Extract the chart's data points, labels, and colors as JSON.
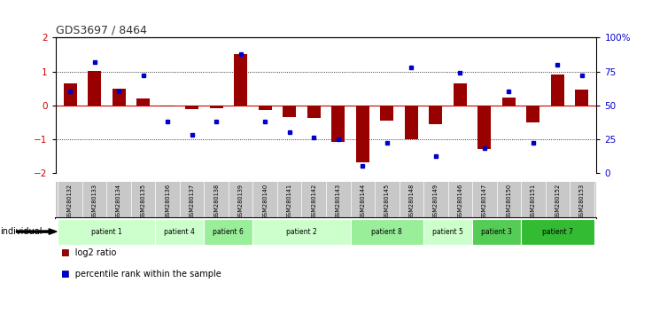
{
  "title": "GDS3697 / 8464",
  "samples": [
    "GSM280132",
    "GSM280133",
    "GSM280134",
    "GSM280135",
    "GSM280136",
    "GSM280137",
    "GSM280138",
    "GSM280139",
    "GSM280140",
    "GSM280141",
    "GSM280142",
    "GSM280143",
    "GSM280144",
    "GSM280145",
    "GSM280148",
    "GSM280149",
    "GSM280146",
    "GSM280147",
    "GSM280150",
    "GSM280151",
    "GSM280152",
    "GSM280153"
  ],
  "log2_ratio": [
    0.65,
    1.02,
    0.48,
    0.2,
    -0.05,
    -0.12,
    -0.08,
    1.52,
    -0.15,
    -0.35,
    -0.38,
    -1.1,
    -1.7,
    -0.45,
    -1.02,
    -0.55,
    0.65,
    -1.3,
    0.22,
    -0.5,
    0.9,
    0.45
  ],
  "percentile": [
    60,
    82,
    60,
    72,
    38,
    28,
    38,
    88,
    38,
    30,
    26,
    25,
    5,
    22,
    78,
    12,
    74,
    18,
    60,
    22,
    80,
    72
  ],
  "patients": [
    {
      "label": "patient 1",
      "indices": [
        0,
        1,
        2,
        3
      ],
      "color": "#ccffcc"
    },
    {
      "label": "patient 4",
      "indices": [
        4,
        5
      ],
      "color": "#ccffcc"
    },
    {
      "label": "patient 6",
      "indices": [
        6,
        7
      ],
      "color": "#99ee99"
    },
    {
      "label": "patient 2",
      "indices": [
        8,
        9,
        10,
        11
      ],
      "color": "#ccffcc"
    },
    {
      "label": "patient 8",
      "indices": [
        12,
        13,
        14
      ],
      "color": "#99ee99"
    },
    {
      "label": "patient 5",
      "indices": [
        15,
        16
      ],
      "color": "#ccffcc"
    },
    {
      "label": "patient 3",
      "indices": [
        17,
        18
      ],
      "color": "#55cc55"
    },
    {
      "label": "patient 7",
      "indices": [
        19,
        20,
        21
      ],
      "color": "#33bb33"
    }
  ],
  "bar_color": "#990000",
  "dot_color": "#0000cc",
  "hline_color": "#cc0000",
  "dotline_color": "black",
  "bg_color": "#ffffff",
  "right_axis_color": "#0000cc",
  "sample_bg_color": "#c8c8c8",
  "legend_bar_label": "log2 ratio",
  "legend_dot_label": "percentile rank within the sample"
}
